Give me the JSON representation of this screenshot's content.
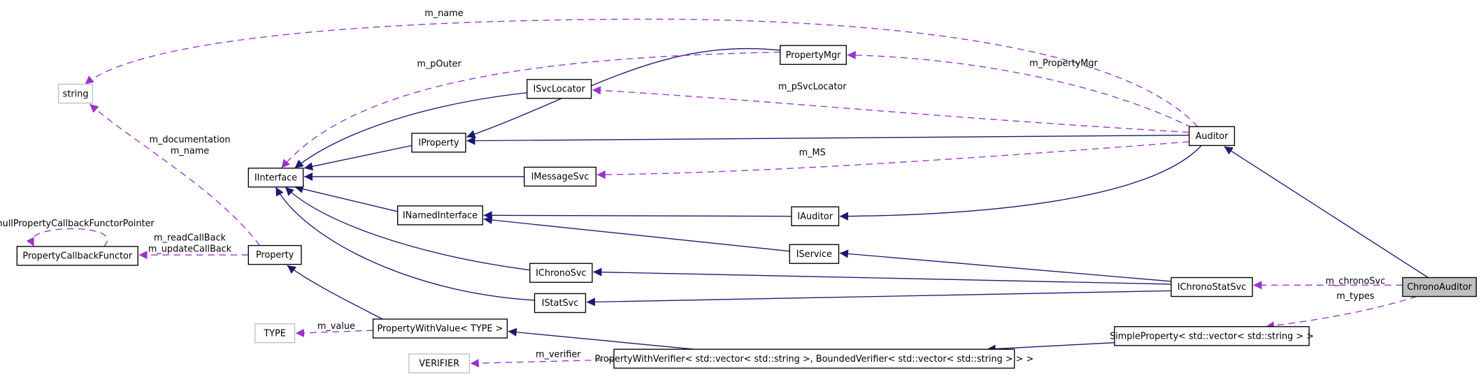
{
  "nodes": [
    {
      "label": "string"
    },
    {
      "label": "IInterface"
    },
    {
      "label": "ISvcLocator"
    },
    {
      "label": "PropertyMgr"
    },
    {
      "label": "IProperty"
    },
    {
      "label": "IMessageSvc"
    },
    {
      "label": "INamedInterface"
    },
    {
      "label": "IAuditor"
    },
    {
      "label": "IService"
    },
    {
      "label": "Auditor"
    },
    {
      "label": "IChronoSvc"
    },
    {
      "label": "IStatSvc"
    },
    {
      "label": "IChronoStatSvc"
    },
    {
      "label": "ChronoAuditor"
    },
    {
      "label": "Property"
    },
    {
      "label": "PropertyCallbackFunctor"
    },
    {
      "label": "TYPE"
    },
    {
      "label": "PropertyWithValue< TYPE >"
    },
    {
      "label": "VERIFIER"
    },
    {
      "label": "PropertyWithVerifier< std::vector< std::string >, BoundedVerifier< std::vector< std::string > > >"
    },
    {
      "label": "SimpleProperty< std::vector< std::string > >"
    }
  ],
  "edge_labels": [
    "m_name",
    "m_pOuter",
    "m_PropertyMgr",
    "m_pSvcLocator",
    "m_documentation",
    "m_name",
    "m_MS",
    "nullPropertyCallbackFunctorPointer",
    "m_readCallBack",
    "m_updateCallBack",
    "m_chronoSvc",
    "m_types",
    "m_value",
    "m_verifier"
  ]
}
